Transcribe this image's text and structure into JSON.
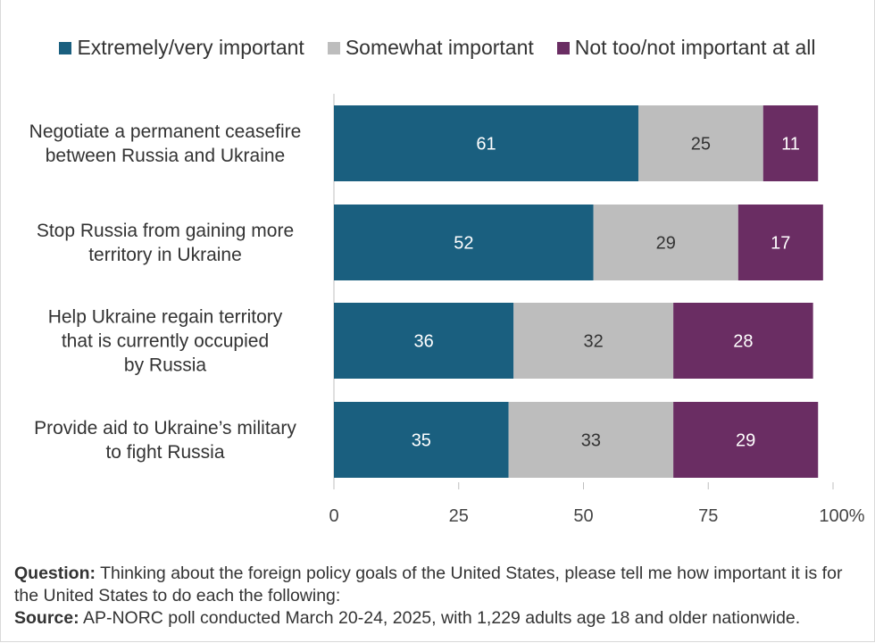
{
  "legend": [
    {
      "label": "Extremely/very important",
      "color": "#1a5f7f"
    },
    {
      "label": "Somewhat important",
      "color": "#bdbdbd"
    },
    {
      "label": "Not too/not important at all",
      "color": "#6a2d63"
    }
  ],
  "chart_data": {
    "type": "bar",
    "orientation": "horizontal",
    "stacked": true,
    "categories": [
      [
        "Negotiate a permanent ceasefire",
        "between Russia and Ukraine"
      ],
      [
        "Stop Russia from gaining more",
        "territory in Ukraine"
      ],
      [
        "Help Ukraine regain territory",
        "that is currently occupied",
        "by Russia"
      ],
      [
        "Provide aid to Ukraine’s military",
        "to fight Russia"
      ]
    ],
    "series": [
      {
        "name": "Extremely/very important",
        "values": [
          61,
          52,
          36,
          35
        ],
        "color": "#1a5f7f",
        "label_color": "#ffffff"
      },
      {
        "name": "Somewhat important",
        "values": [
          25,
          29,
          32,
          33
        ],
        "color": "#bdbdbd",
        "label_color": "#333333"
      },
      {
        "name": "Not too/not important at all",
        "values": [
          11,
          17,
          28,
          29
        ],
        "color": "#6a2d63",
        "label_color": "#ffffff"
      }
    ],
    "xlim": [
      0,
      100
    ],
    "xticks": [
      "0",
      "25",
      "50",
      "75",
      "100%"
    ],
    "xtick_values": [
      0,
      25,
      50,
      75,
      100
    ],
    "grid": false
  },
  "notes": {
    "question_label": "Question:",
    "question_text": " Thinking about the foreign policy goals of the United States, please tell me how important it is for the United States to do each the following:",
    "source_label": "Source:",
    "source_text": " AP-NORC poll conducted March 20-24, 2025, with 1,229 adults age 18 and older nationwide."
  }
}
